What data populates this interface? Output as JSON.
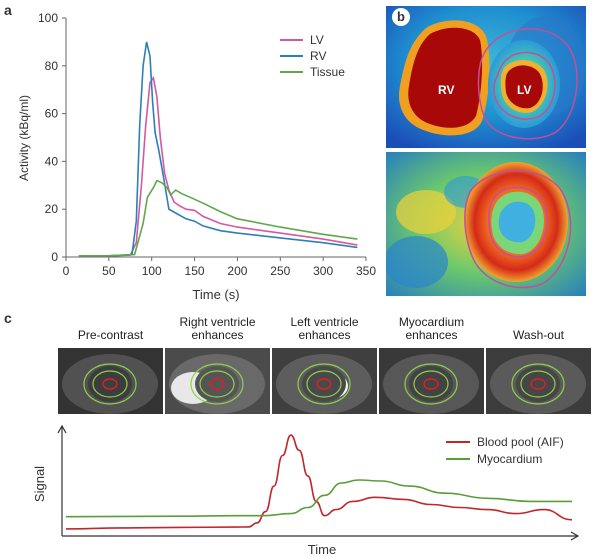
{
  "panels": {
    "a": "a",
    "b": "b",
    "c": "c"
  },
  "chart_data": [
    {
      "type": "line",
      "panel": "a",
      "xlabel": "Time (s)",
      "ylabel": "Activity (kBq/ml)",
      "xlim": [
        0,
        350
      ],
      "ylim": [
        0,
        100
      ],
      "xticks": [
        0,
        50,
        100,
        150,
        200,
        250,
        300,
        350
      ],
      "yticks": [
        0,
        20,
        40,
        60,
        80,
        100
      ],
      "legend_position": "top-right",
      "series": [
        {
          "name": "LV",
          "color": "#d45a9e",
          "points": [
            [
              15,
              0.5
            ],
            [
              50,
              0.5
            ],
            [
              75,
              0.8
            ],
            [
              82,
              6
            ],
            [
              88,
              30
            ],
            [
              93,
              55
            ],
            [
              98,
              73
            ],
            [
              102,
              75
            ],
            [
              106,
              67
            ],
            [
              110,
              50
            ],
            [
              115,
              35
            ],
            [
              120,
              28
            ],
            [
              126,
              23
            ],
            [
              132,
              21.5
            ],
            [
              140,
              20
            ],
            [
              150,
              19.5
            ],
            [
              160,
              17
            ],
            [
              180,
              14
            ],
            [
              200,
              12.5
            ],
            [
              250,
              10
            ],
            [
              300,
              7.5
            ],
            [
              340,
              5
            ]
          ]
        },
        {
          "name": "RV",
          "color": "#2c7fb8",
          "points": [
            [
              15,
              0.5
            ],
            [
              50,
              0.5
            ],
            [
              77,
              1
            ],
            [
              82,
              15
            ],
            [
              86,
              55
            ],
            [
              90,
              80
            ],
            [
              94,
              90
            ],
            [
              98,
              84
            ],
            [
              101,
              65
            ],
            [
              104,
              52
            ],
            [
              108,
              45
            ],
            [
              114,
              33
            ],
            [
              120,
              20
            ],
            [
              130,
              18
            ],
            [
              140,
              16
            ],
            [
              150,
              15
            ],
            [
              160,
              13
            ],
            [
              180,
              11
            ],
            [
              200,
              10
            ],
            [
              250,
              8
            ],
            [
              300,
              6
            ],
            [
              340,
              4
            ]
          ]
        },
        {
          "name": "Tissue",
          "color": "#5fa84a",
          "points": [
            [
              15,
              0.5
            ],
            [
              50,
              0.5
            ],
            [
              80,
              1
            ],
            [
              90,
              14
            ],
            [
              95,
              25
            ],
            [
              102,
              29
            ],
            [
              106,
              32
            ],
            [
              112,
              31
            ],
            [
              118,
              29
            ],
            [
              122,
              26
            ],
            [
              128,
              28
            ],
            [
              135,
              26.5
            ],
            [
              145,
              25
            ],
            [
              160,
              22.5
            ],
            [
              180,
              19
            ],
            [
              200,
              16
            ],
            [
              250,
              12.5
            ],
            [
              300,
              9.5
            ],
            [
              340,
              7.5
            ]
          ]
        }
      ]
    },
    {
      "type": "line",
      "panel": "c",
      "xlabel": "Time",
      "ylabel": "Signal",
      "legend_position": "top-right",
      "series": [
        {
          "name": "Blood pool (AIF)",
          "color": "#c0272d",
          "points": [
            [
              0,
              3
            ],
            [
              20,
              4
            ],
            [
              40,
              4.5
            ],
            [
              60,
              4.8
            ],
            [
              65,
              5
            ],
            [
              68,
              9
            ],
            [
              71,
              20
            ],
            [
              74,
              45
            ],
            [
              77,
              75
            ],
            [
              80,
              95
            ],
            [
              83,
              80
            ],
            [
              86,
              55
            ],
            [
              89,
              30
            ],
            [
              92,
              16
            ],
            [
              96,
              22
            ],
            [
              102,
              30
            ],
            [
              110,
              34
            ],
            [
              120,
              32
            ],
            [
              130,
              27
            ],
            [
              140,
              24
            ],
            [
              150,
              22
            ],
            [
              160,
              18
            ],
            [
              170,
              22
            ],
            [
              180,
              12
            ]
          ]
        },
        {
          "name": "Myocardium",
          "color": "#5a9e3a",
          "points": [
            [
              0,
              15
            ],
            [
              40,
              15.5
            ],
            [
              60,
              16
            ],
            [
              70,
              16
            ],
            [
              80,
              18
            ],
            [
              86,
              24
            ],
            [
              92,
              36
            ],
            [
              98,
              48
            ],
            [
              104,
              51
            ],
            [
              112,
              50
            ],
            [
              122,
              45
            ],
            [
              135,
              38
            ],
            [
              150,
              33
            ],
            [
              165,
              30
            ],
            [
              180,
              30
            ]
          ]
        }
      ]
    }
  ],
  "images_b": {
    "labels": [
      "RV",
      "LV"
    ]
  },
  "mri_frames": [
    {
      "caption_line1": "Pre-contrast",
      "caption_line2": ""
    },
    {
      "caption_line1": "Right ventricle",
      "caption_line2": "enhances"
    },
    {
      "caption_line1": "Left ventricle",
      "caption_line2": "enhances"
    },
    {
      "caption_line1": "Myocardium",
      "caption_line2": "enhances"
    },
    {
      "caption_line1": "Wash-out",
      "caption_line2": ""
    }
  ],
  "colors": {
    "mask_line": "#c24f9c",
    "heat_red": "#b31410",
    "heat_blue": "#1f5fc2"
  }
}
